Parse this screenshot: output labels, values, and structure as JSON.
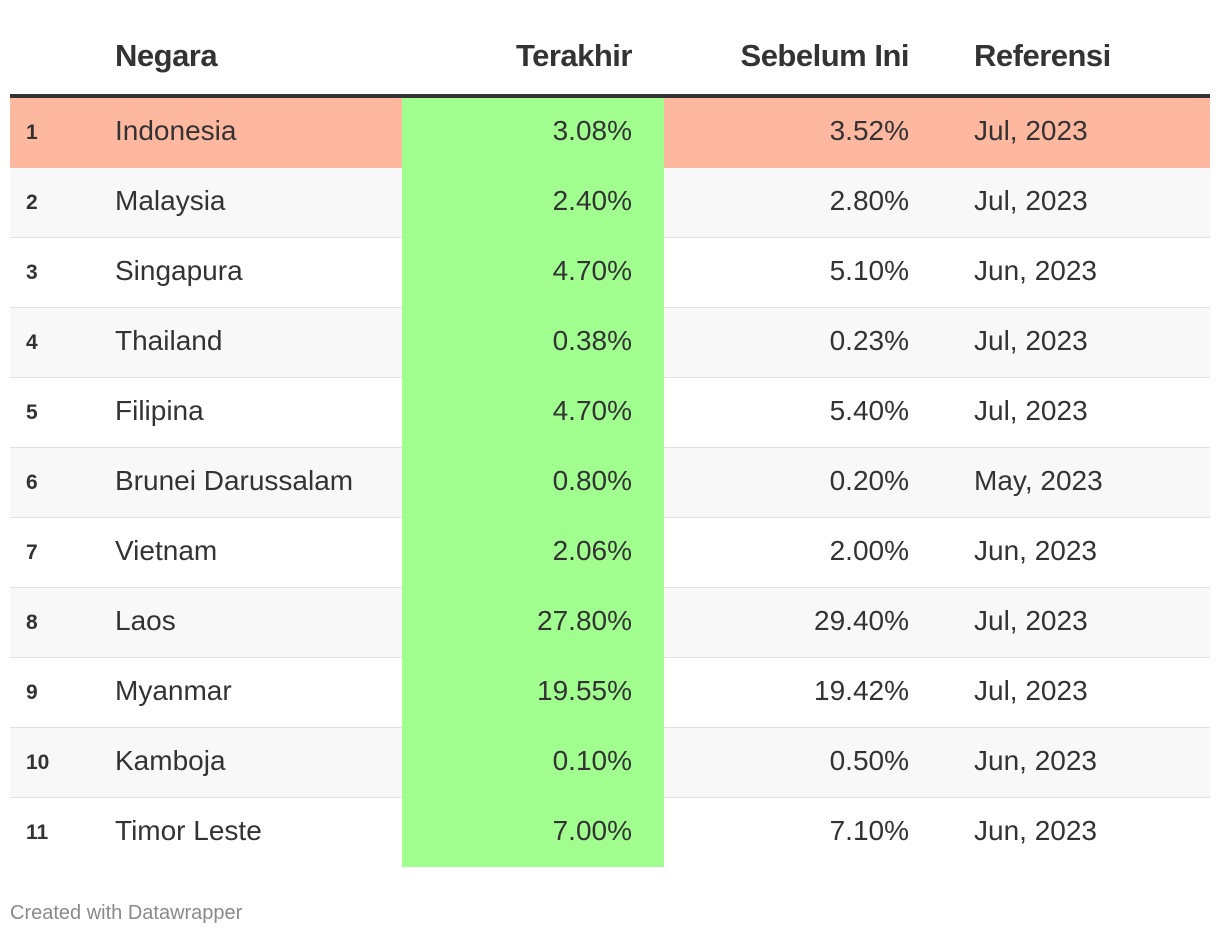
{
  "chart_data": {
    "type": "table",
    "columns": [
      "",
      "Negara",
      "Terakhir",
      "Sebelum Ini",
      "Referensi"
    ],
    "rows": [
      {
        "rank": "1",
        "country": "Indonesia",
        "latest": "3.08%",
        "previous": "3.52%",
        "reference": "Jul, 2023"
      },
      {
        "rank": "2",
        "country": "Malaysia",
        "latest": "2.40%",
        "previous": "2.80%",
        "reference": "Jul, 2023"
      },
      {
        "rank": "3",
        "country": "Singapura",
        "latest": "4.70%",
        "previous": "5.10%",
        "reference": "Jun, 2023"
      },
      {
        "rank": "4",
        "country": "Thailand",
        "latest": "0.38%",
        "previous": "0.23%",
        "reference": "Jul, 2023"
      },
      {
        "rank": "5",
        "country": "Filipina",
        "latest": "4.70%",
        "previous": "5.40%",
        "reference": "Jul, 2023"
      },
      {
        "rank": "6",
        "country": "Brunei Darussalam",
        "latest": "0.80%",
        "previous": "0.20%",
        "reference": "May, 2023"
      },
      {
        "rank": "7",
        "country": "Vietnam",
        "latest": "2.06%",
        "previous": "2.00%",
        "reference": "Jun, 2023"
      },
      {
        "rank": "8",
        "country": "Laos",
        "latest": "27.80%",
        "previous": "29.40%",
        "reference": "Jul, 2023"
      },
      {
        "rank": "9",
        "country": "Myanmar",
        "latest": "19.55%",
        "previous": "19.42%",
        "reference": "Jul, 2023"
      },
      {
        "rank": "10",
        "country": "Kamboja",
        "latest": "0.10%",
        "previous": "0.50%",
        "reference": "Jun, 2023"
      },
      {
        "rank": "11",
        "country": "Timor Leste",
        "latest": "7.00%",
        "previous": "7.10%",
        "reference": "Jun, 2023"
      }
    ],
    "highlighted_row": 0,
    "highlight_color": "#ffb8a0",
    "highlighted_column_color": "#a0ff8f"
  },
  "footer": {
    "credit": "Created with Datawrapper"
  }
}
